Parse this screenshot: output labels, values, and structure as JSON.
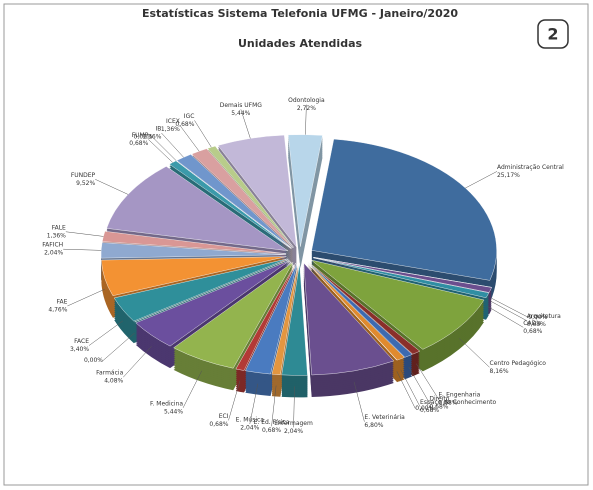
{
  "chart_data": {
    "type": "pie",
    "title": "Estatísticas Sistema Telefonia UFMG - Janeiro/2020",
    "subtitle": "Unidades Atendidas",
    "annotation": "2",
    "categories": [
      "Administração Central",
      null,
      "Arquitetura",
      "CAD's",
      "Centro Pedagógico",
      "E. Engenharia",
      "Direito",
      "Espaço do Conhecimento",
      null,
      "E. Veterinária",
      "Enfermagem",
      "E. Ed. Física",
      "E. Música",
      "ECI",
      "F. Medicina",
      "Farmácia",
      null,
      "FACE",
      "FAE",
      "FAFICH",
      "FALE",
      "FUNDEP",
      "FUMP",
      null,
      "IB",
      "ICEX",
      "IGC",
      "Demais UFMG",
      "Odontologia"
    ],
    "values": [
      25.17,
      0,
      0.68,
      0.68,
      8.16,
      0.68,
      0.68,
      0.68,
      0,
      6.8,
      2.04,
      0.68,
      2.04,
      0.68,
      5.44,
      4.08,
      0,
      3.4,
      4.76,
      2.04,
      1.36,
      9.52,
      0.68,
      0,
      1.36,
      1.36,
      0.68,
      5.44,
      2.72
    ],
    "value_labels": [
      "25,17%",
      "0,00%",
      "0,68%",
      "0,68%",
      "8,16%",
      "0,68%",
      "0,68%",
      "0,68%",
      "0,00%",
      "6,80%",
      "2,04%",
      "0,68%",
      "2,04%",
      "0,68%",
      "5,44%",
      "4,08%",
      "0,00%",
      "3,40%",
      "4,76%",
      "2,04%",
      "1,36%",
      "9,52%",
      "0,68%",
      "0,00%",
      "1,36%",
      "1,36%",
      "0,68%",
      "5,44%",
      "2,72%"
    ],
    "colors": [
      "#3f6c9e",
      "#c8d96f",
      "#6b4e8e",
      "#2f8ea3",
      "#7ea33d",
      "#8a2f2b",
      "#3d6ab0",
      "#e08a2e",
      "#9bb060",
      "#6a4f8f",
      "#2e8a94",
      "#e39640",
      "#4a7bc0",
      "#b33a36",
      "#93b44e",
      "#6b4f9e",
      "#3aa0b0",
      "#2f8f9a",
      "#f39233",
      "#8fa9d0",
      "#d99795",
      "#a596c4",
      "#3b9aaa",
      "#5a7fc0",
      "#7096cc",
      "#d9a0a0",
      "#b8cc8a",
      "#c2b8d8",
      "#b8d6ea"
    ]
  }
}
